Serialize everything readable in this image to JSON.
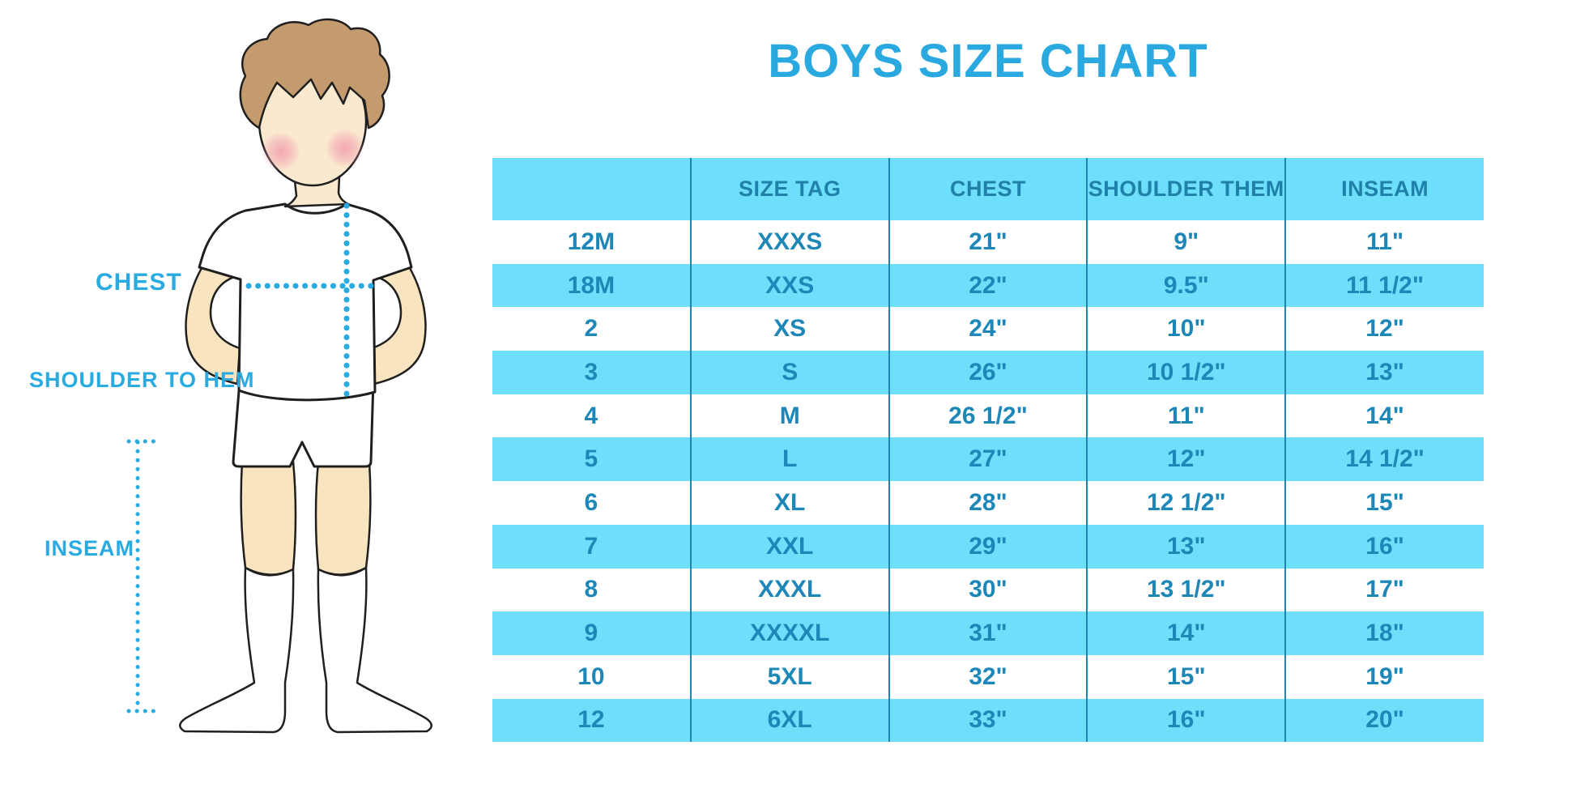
{
  "title": "BOYS SIZE CHART",
  "diagram": {
    "chest_label": "CHEST",
    "shoulder_to_hem_label": "SHOULDER TO HEM",
    "inseam_label": "INSEAM"
  },
  "chart_data": {
    "type": "table",
    "title": "BOYS SIZE CHART",
    "columns": [
      "",
      "SIZE TAG",
      "CHEST",
      "SHOULDER THEM",
      "INSEAM"
    ],
    "rows": [
      [
        "12M",
        "XXXS",
        "21\"",
        "9\"",
        "11\""
      ],
      [
        "18M",
        "XXS",
        "22\"",
        "9.5\"",
        "11 1/2\""
      ],
      [
        "2",
        "XS",
        "24\"",
        "10\"",
        "12\""
      ],
      [
        "3",
        "S",
        "26\"",
        "10 1/2\"",
        "13\""
      ],
      [
        "4",
        "M",
        "26 1/2\"",
        "11\"",
        "14\""
      ],
      [
        "5",
        "L",
        "27\"",
        "12\"",
        "14 1/2\""
      ],
      [
        "6",
        "XL",
        "28\"",
        "12 1/2\"",
        "15\""
      ],
      [
        "7",
        "XXL",
        "29\"",
        "13\"",
        "16\""
      ],
      [
        "8",
        "XXXL",
        "30\"",
        "13 1/2\"",
        "17\""
      ],
      [
        "9",
        "XXXXL",
        "31\"",
        "14\"",
        "18\""
      ],
      [
        "10",
        "5XL",
        "32\"",
        "15\"",
        "19\""
      ],
      [
        "12",
        "6XL",
        "33\"",
        "16\"",
        "20\""
      ]
    ]
  },
  "colors": {
    "accent_blue": "#29ABE2",
    "title_blue": "#29A9DF",
    "band_cyan": "#6EDFFA",
    "divider_teal": "#2184AE",
    "header_text": "#1F80A9",
    "cell_text": "#1D87B8",
    "skin": "#F8E4BE",
    "face_skin": "#FAE9CF",
    "hair_brown": "#C39B6E",
    "blush_pink": "#F29DAF",
    "outline": "#1F1F1F"
  }
}
